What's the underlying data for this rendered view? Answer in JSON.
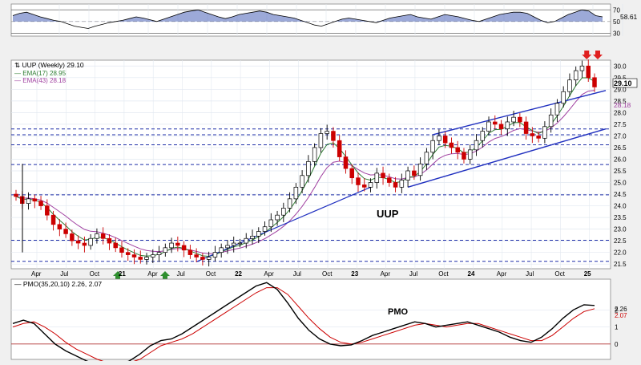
{
  "chart_data": [
    {
      "panel": "rsi",
      "type": "line",
      "y_ticks": [
        "70",
        "50",
        "30"
      ],
      "last_value_label": "58.61",
      "ylim": [
        25,
        80
      ],
      "series": [
        {
          "values": [
            60,
            64,
            66,
            62,
            58,
            55,
            52,
            50,
            46,
            42,
            40,
            38,
            42,
            45,
            48,
            50,
            52,
            55,
            58,
            56,
            53,
            50,
            54,
            58,
            62,
            66,
            68,
            70,
            66,
            62,
            58,
            55,
            58,
            62,
            64,
            66,
            68,
            66,
            62,
            60,
            58,
            56,
            52,
            48,
            44,
            42,
            46,
            50,
            54,
            56,
            54,
            52,
            50,
            48,
            52,
            56,
            58,
            60,
            62,
            58,
            56,
            54,
            58,
            62,
            60,
            58,
            55,
            52,
            50,
            54,
            58,
            62,
            64,
            66,
            66,
            64,
            58,
            52,
            48,
            50,
            56,
            62,
            66,
            70,
            68,
            60,
            58
          ]
        }
      ]
    },
    {
      "panel": "price",
      "type": "candlestick",
      "title": "UUP (Weekly) 29.10",
      "watermark": "UUP",
      "legend": [
        {
          "label": "EMA(17) 28.95",
          "color": "#2e7d32"
        },
        {
          "label": "EMA(43) 28.18",
          "color": "#a040a0"
        }
      ],
      "last_price_label": "29.10",
      "ema43_tag": "28.18",
      "y_ticks": [
        "30.0",
        "29.5",
        "29.0",
        "28.5",
        "28.0",
        "27.5",
        "27.0",
        "26.5",
        "26.0",
        "25.5",
        "25.0",
        "24.5",
        "24.0",
        "23.5",
        "23.0",
        "22.5",
        "22.0",
        "21.5"
      ],
      "ylim": [
        21.3,
        30.25
      ],
      "x_ticks": [
        "Apr",
        "Jul",
        "Oct",
        "21",
        "Apr",
        "Jul",
        "Oct",
        "22",
        "Apr",
        "Jul",
        "Oct",
        "23",
        "Apr",
        "Jul",
        "Oct",
        "24",
        "Apr",
        "Jul",
        "Oct",
        "25"
      ],
      "horizontal_levels": [
        27.3,
        27.05,
        26.62,
        25.77,
        24.47,
        22.52,
        21.62
      ],
      "close": [
        24.4,
        24.1,
        24.3,
        24.2,
        24.0,
        23.6,
        23.2,
        23.0,
        22.8,
        22.5,
        22.4,
        22.3,
        22.6,
        22.8,
        22.6,
        22.4,
        22.2,
        22.0,
        21.9,
        21.8,
        21.7,
        21.8,
        21.9,
        22.0,
        22.2,
        22.4,
        22.3,
        22.1,
        21.9,
        21.8,
        21.7,
        21.8,
        22.0,
        22.2,
        22.3,
        22.4,
        22.4,
        22.6,
        22.7,
        22.9,
        23.1,
        23.4,
        23.6,
        23.9,
        24.3,
        24.8,
        25.3,
        25.9,
        26.5,
        27.1,
        27.2,
        26.8,
        26.1,
        25.6,
        25.2,
        24.9,
        24.8,
        25.0,
        25.4,
        25.2,
        25.0,
        24.8,
        25.1,
        25.5,
        25.3,
        25.8,
        26.3,
        26.8,
        27.0,
        26.7,
        26.5,
        26.3,
        26.0,
        26.4,
        26.8,
        27.2,
        27.6,
        27.5,
        27.3,
        27.6,
        27.8,
        27.6,
        27.1,
        27.0,
        26.9,
        27.4,
        27.9,
        28.4,
        28.9,
        29.4,
        29.8,
        30.0,
        29.5,
        29.1
      ],
      "ema17_last": 28.95,
      "ema43_last": 28.18
    },
    {
      "panel": "pmo",
      "type": "line",
      "title": "PMO(35,20,10) 2.26, 2.07",
      "watermark": "PMO",
      "y_ticks": [
        "2",
        "1",
        "0"
      ],
      "tags": [
        "2.26",
        "2.07"
      ],
      "ylim": [
        -0.9,
        3.8
      ],
      "series": [
        {
          "values": [
            1.2,
            1.4,
            1.2,
            0.6,
            0.0,
            -0.4,
            -0.7,
            -1.0,
            -1.2,
            -1.3,
            -1.2,
            -1.0,
            -0.6,
            -0.1,
            0.2,
            0.3,
            0.6,
            1.0,
            1.4,
            1.8,
            2.2,
            2.6,
            3.0,
            3.4,
            3.6,
            3.2,
            2.4,
            1.5,
            0.8,
            0.3,
            0.0,
            -0.1,
            -0.05,
            0.2,
            0.5,
            0.7,
            0.9,
            1.1,
            1.3,
            1.2,
            1.0,
            1.1,
            1.2,
            1.3,
            1.1,
            0.9,
            0.7,
            0.4,
            0.2,
            0.1,
            0.4,
            0.9,
            1.5,
            2.0,
            2.3,
            2.26
          ],
          "color": "#000000"
        },
        {
          "values": [
            1.0,
            1.2,
            1.3,
            1.0,
            0.6,
            0.1,
            -0.3,
            -0.6,
            -0.9,
            -1.1,
            -1.2,
            -1.1,
            -0.9,
            -0.5,
            -0.1,
            0.1,
            0.3,
            0.6,
            1.0,
            1.4,
            1.8,
            2.2,
            2.6,
            3.0,
            3.3,
            3.3,
            2.9,
            2.2,
            1.5,
            0.9,
            0.4,
            0.1,
            0.0,
            0.1,
            0.3,
            0.5,
            0.7,
            0.9,
            1.1,
            1.2,
            1.1,
            1.0,
            1.1,
            1.2,
            1.2,
            1.0,
            0.8,
            0.6,
            0.4,
            0.2,
            0.2,
            0.5,
            1.0,
            1.5,
            1.9,
            2.07
          ],
          "color": "#cc0000"
        }
      ]
    }
  ],
  "colors": {
    "up": "#000000",
    "down": "#cc0000",
    "trendline": "#1f2fbf",
    "level": "#1f2fa8",
    "arrow_down": "#e02020",
    "arrow_up": "#2f8f2f"
  }
}
